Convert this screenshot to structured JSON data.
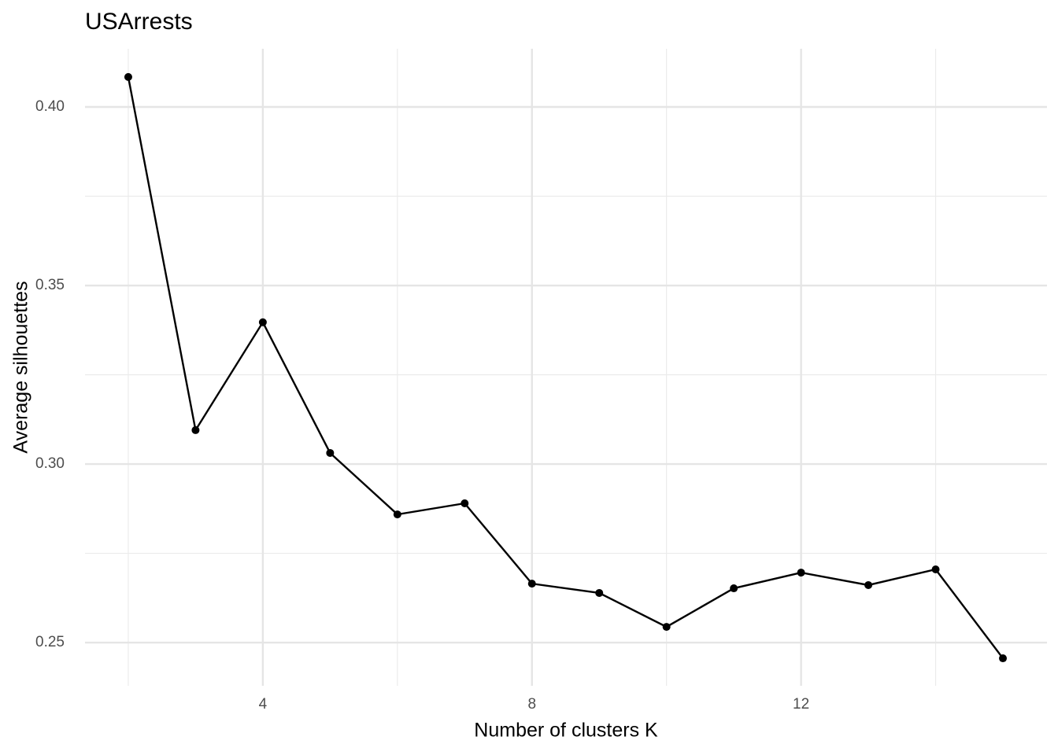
{
  "chart_data": {
    "type": "line",
    "title": "USArrests",
    "x_label": "Number of clusters K",
    "y_label": "Average silhouettes",
    "x": [
      2,
      3,
      4,
      5,
      6,
      7,
      8,
      9,
      10,
      11,
      12,
      13,
      14,
      15
    ],
    "series": [
      {
        "name": "Average silhouettes",
        "color": "#000000",
        "values": [
          0.4084,
          0.3095,
          0.3397,
          0.3031,
          0.2859,
          0.289,
          0.2665,
          0.2639,
          0.2544,
          0.2652,
          0.2696,
          0.2661,
          0.2705,
          0.2456
        ]
      }
    ],
    "xlim": [
      1.357,
      15.655
    ],
    "ylim": [
      0.2379,
      0.4163
    ],
    "xticks": [
      4,
      8,
      12
    ],
    "yticks": [
      {
        "value": 0.25,
        "label": "0.25"
      },
      {
        "value": 0.3,
        "label": "0.30"
      },
      {
        "value": 0.35,
        "label": "0.35"
      },
      {
        "value": 0.4,
        "label": "0.40"
      }
    ],
    "x_minor_ticks": [
      2,
      6,
      10,
      14
    ],
    "y_minor_ticks": [
      0.275,
      0.325,
      0.375
    ],
    "grid": true
  }
}
